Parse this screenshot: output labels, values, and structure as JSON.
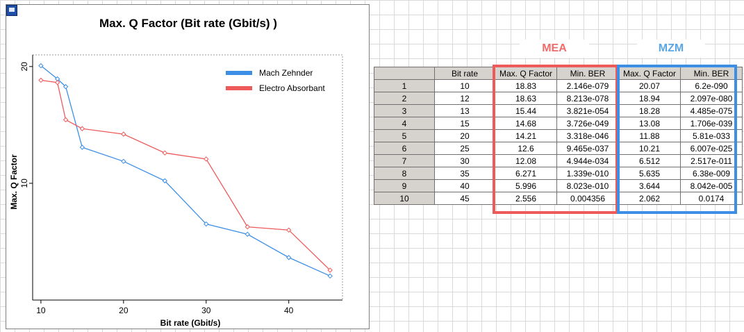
{
  "chart_data": {
    "type": "line",
    "title": "Max. Q Factor (Bit rate (Gbit/s) )",
    "xlabel": "Bit rate (Gbit/s)",
    "ylabel": "Max. Q Factor",
    "xlim": [
      9,
      46.5
    ],
    "ylim": [
      0,
      21
    ],
    "x_ticks": [
      10,
      20,
      30,
      40
    ],
    "y_ticks": [
      10,
      20
    ],
    "legend_position": "top-right",
    "grid": "dotted border",
    "x": [
      10,
      12,
      13,
      15,
      20,
      25,
      30,
      35,
      40,
      45
    ],
    "series": [
      {
        "name": "Mach Zehnder",
        "color": "#3d8fe6",
        "values": [
          20.07,
          18.94,
          18.28,
          13.08,
          11.88,
          10.21,
          6.512,
          5.635,
          3.644,
          2.062
        ]
      },
      {
        "name": "Electro Absorbant",
        "color": "#ee5a5a",
        "values": [
          18.83,
          18.63,
          15.44,
          14.68,
          14.21,
          12.6,
          12.08,
          6.271,
          5.996,
          2.556
        ]
      }
    ]
  },
  "table": {
    "group_labels": {
      "mea": "MEA",
      "mzm": "MZM"
    },
    "headers": [
      "",
      "Bit rate",
      "Max. Q Factor",
      "Min. BER",
      "Max. Q Factor",
      "Min. BER"
    ],
    "rows": [
      [
        "1",
        "10",
        "18.83",
        "2.146e-079",
        "20.07",
        "6.2e-090"
      ],
      [
        "2",
        "12",
        "18.63",
        "8.213e-078",
        "18.94",
        "2.097e-080"
      ],
      [
        "3",
        "13",
        "15.44",
        "3.821e-054",
        "18.28",
        "4.485e-075"
      ],
      [
        "4",
        "15",
        "14.68",
        "3.726e-049",
        "13.08",
        "1.706e-039"
      ],
      [
        "5",
        "20",
        "14.21",
        "3.318e-046",
        "11.88",
        "5.81e-033"
      ],
      [
        "6",
        "25",
        "12.6",
        "9.465e-037",
        "10.21",
        "6.007e-025"
      ],
      [
        "7",
        "30",
        "12.08",
        "4.944e-034",
        "6.512",
        "2.517e-011"
      ],
      [
        "8",
        "35",
        "6.271",
        "1.339e-010",
        "5.635",
        "6.38e-009"
      ],
      [
        "9",
        "40",
        "5.996",
        "8.023e-010",
        "3.644",
        "8.042e-005"
      ],
      [
        "10",
        "45",
        "2.556",
        "0.004356",
        "2.062",
        "0.0174"
      ]
    ]
  }
}
